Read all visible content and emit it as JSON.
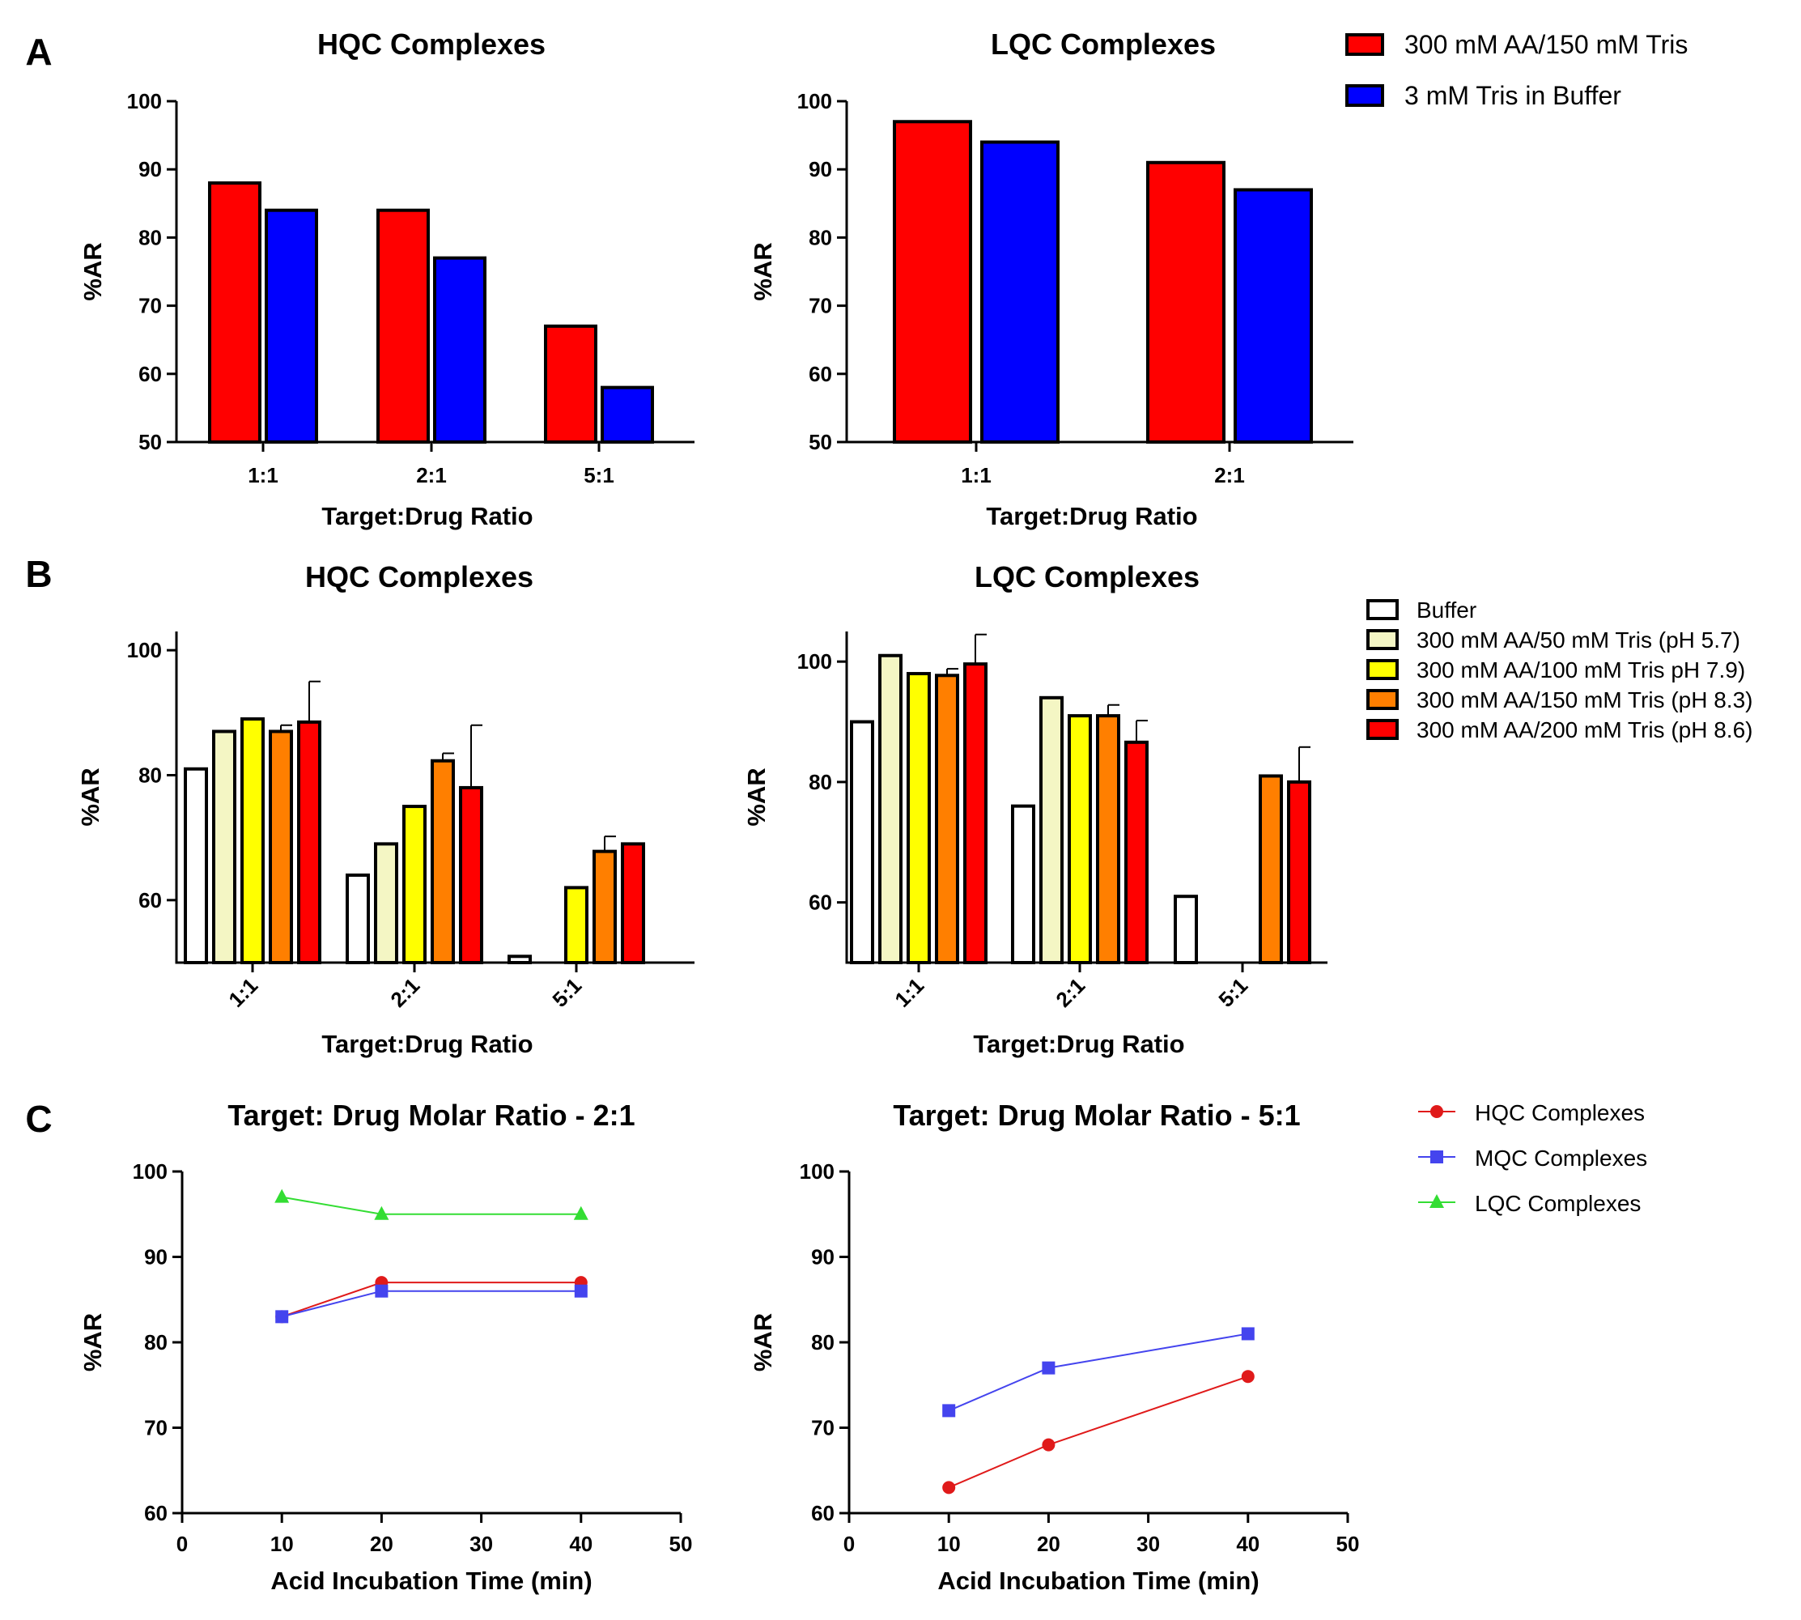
{
  "panel_letters": [
    "A",
    "B",
    "C"
  ],
  "colors": {
    "red": "#ff0000",
    "blue": "#0000ff",
    "white": "#ffffff",
    "pale_yellow": "#f4f6c4",
    "yellow": "#ffff00",
    "orange": "#ff7f00",
    "line_red": "#e01a1a",
    "line_blue": "#4444ee",
    "line_green": "#33dd33"
  },
  "legends": {
    "A": [
      "300 mM AA/150 mM Tris",
      "3 mM Tris in Buffer"
    ],
    "B": [
      "Buffer",
      "300 mM AA/50 mM Tris (pH 5.7)",
      "300 mM AA/100 mM Tris pH 7.9)",
      "300 mM AA/150 mM Tris (pH 8.3)",
      "300 mM AA/200 mM Tris (pH 8.6)"
    ],
    "C": [
      "HQC Complexes",
      "MQC Complexes",
      "LQC Complexes"
    ]
  },
  "chart_data": [
    {
      "id": "A-HQC",
      "type": "bar",
      "title": "HQC  Complexes",
      "xlabel": "Target:Drug Ratio",
      "ylabel": "%AR",
      "ylim": [
        50,
        100
      ],
      "yticks": [
        50,
        60,
        70,
        80,
        90,
        100
      ],
      "categories": [
        "1:1",
        "2:1",
        "5:1"
      ],
      "series": [
        {
          "name": "300 mM AA/150 mM Tris",
          "values": [
            88,
            84,
            67
          ]
        },
        {
          "name": "3 mM Tris in Buffer",
          "values": [
            84,
            77,
            58
          ]
        }
      ]
    },
    {
      "id": "A-LQC",
      "type": "bar",
      "title": "LQC Complexes",
      "xlabel": "Target:Drug Ratio",
      "ylabel": "%AR",
      "ylim": [
        50,
        100
      ],
      "yticks": [
        50,
        60,
        70,
        80,
        90,
        100
      ],
      "categories": [
        "1:1",
        "2:1"
      ],
      "series": [
        {
          "name": "300 mM AA/150 mM Tris",
          "values": [
            97,
            91
          ]
        },
        {
          "name": "3 mM Tris in Buffer",
          "values": [
            94,
            87
          ]
        }
      ]
    },
    {
      "id": "B-HQC",
      "type": "bar",
      "title": "HQC Complexes",
      "xlabel": "Target:Drug Ratio",
      "ylabel": "%AR",
      "ylim": [
        50,
        103
      ],
      "yticks": [
        60,
        80,
        100
      ],
      "categories": [
        "1:1",
        "2:1",
        "5:1"
      ],
      "series": [
        {
          "name": "Buffer",
          "values": [
            81,
            64,
            51
          ],
          "errors": [
            0,
            0,
            0
          ]
        },
        {
          "name": "300 mM AA/50 mM Tris (pH 5.7)",
          "values": [
            87,
            69,
            null
          ],
          "errors": [
            0,
            0,
            0
          ]
        },
        {
          "name": "300 mM AA/100 mM Tris pH 7.9)",
          "values": [
            89,
            75,
            62
          ],
          "errors": [
            0,
            0,
            0
          ]
        },
        {
          "name": "300 mM AA/150 mM Tris (pH 8.3)",
          "values": [
            87,
            82.3,
            67.8
          ],
          "errors": [
            1,
            1.2,
            2.4
          ]
        },
        {
          "name": "300 mM AA/200 mM Tris (pH 8.6)",
          "values": [
            88.5,
            78,
            69
          ],
          "errors": [
            6.5,
            10,
            0
          ]
        }
      ]
    },
    {
      "id": "B-LQC",
      "type": "bar",
      "title": "LQC Complexes",
      "xlabel": "Target:Drug Ratio",
      "ylabel": "%AR",
      "ylim": [
        50,
        105
      ],
      "yticks": [
        60,
        80,
        100
      ],
      "categories": [
        "1:1",
        "2:1",
        "5:1"
      ],
      "series": [
        {
          "name": "Buffer",
          "values": [
            90,
            76,
            61
          ],
          "errors": [
            0,
            0,
            0
          ]
        },
        {
          "name": "300 mM AA/50 mM Tris (pH 5.7)",
          "values": [
            101,
            94,
            null
          ],
          "errors": [
            0,
            0,
            0
          ]
        },
        {
          "name": "300 mM AA/100 mM Tris pH 7.9)",
          "values": [
            98,
            91,
            null
          ],
          "errors": [
            0,
            0,
            0
          ]
        },
        {
          "name": "300 mM AA/150 mM Tris (pH 8.3)",
          "values": [
            97.7,
            91,
            81
          ],
          "errors": [
            1.1,
            1.8,
            0
          ]
        },
        {
          "name": "300 mM AA/200 mM Tris (pH 8.6)",
          "values": [
            99.6,
            86.6,
            80
          ],
          "errors": [
            4.9,
            3.6,
            5.8
          ]
        }
      ]
    },
    {
      "id": "C-2to1",
      "type": "line",
      "title": "Target: Drug Molar Ratio - 2:1",
      "xlabel": "Acid Incubation  Time (min)",
      "ylabel": "%AR",
      "xlim": [
        0,
        50
      ],
      "xticks": [
        0,
        10,
        20,
        30,
        40,
        50
      ],
      "ylim": [
        60,
        100
      ],
      "yticks": [
        60,
        70,
        80,
        90,
        100
      ],
      "series": [
        {
          "name": "HQC Complexes",
          "x": [
            10,
            20,
            40
          ],
          "y": [
            83,
            87,
            87
          ]
        },
        {
          "name": "MQC Complexes",
          "x": [
            10,
            20,
            40
          ],
          "y": [
            83,
            86,
            86
          ]
        },
        {
          "name": "LQC Complexes",
          "x": [
            10,
            20,
            40
          ],
          "y": [
            97,
            95,
            95
          ]
        }
      ]
    },
    {
      "id": "C-5to1",
      "type": "line",
      "title": "Target: Drug Molar Ratio - 5:1",
      "xlabel": "Acid Incubation Time (min)",
      "ylabel": "%AR",
      "xlim": [
        0,
        50
      ],
      "xticks": [
        0,
        10,
        20,
        30,
        40,
        50
      ],
      "ylim": [
        60,
        100
      ],
      "yticks": [
        60,
        70,
        80,
        90,
        100
      ],
      "series": [
        {
          "name": "HQC Complexes",
          "x": [
            10,
            20,
            40
          ],
          "y": [
            63,
            68,
            76
          ]
        },
        {
          "name": "MQC Complexes",
          "x": [
            10,
            20,
            40
          ],
          "y": [
            72,
            77,
            81
          ]
        }
      ]
    }
  ]
}
